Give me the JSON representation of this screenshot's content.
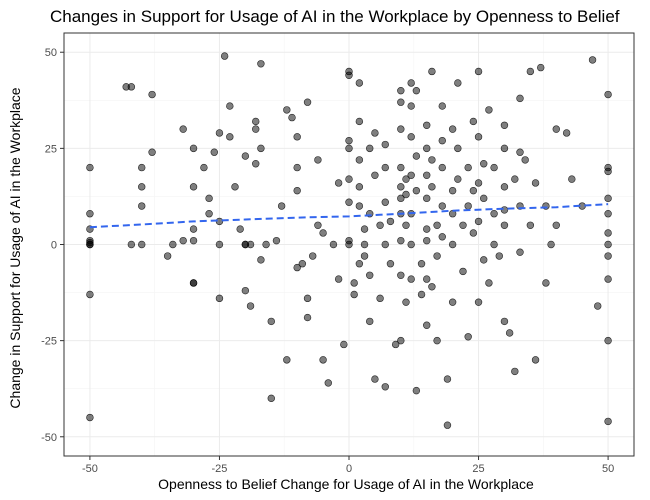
{
  "chart_data": {
    "type": "scatter",
    "title": "Changes in Support for Usage of AI in the Workplace by Openness to Belief",
    "xlabel": "Openness to Belief Change for Usage of AI in the Workplace",
    "ylabel": "Change in Support for Usage of AI in the Workplace",
    "xlim": [
      -55,
      55
    ],
    "ylim": [
      -55,
      55
    ],
    "xticks": [
      -50,
      -25,
      0,
      25,
      50
    ],
    "yticks": [
      -50,
      -25,
      0,
      25,
      50
    ],
    "grid": true,
    "point_color": "#000000",
    "point_opacity": 0.5,
    "trend_color": "#3366ee",
    "trend": {
      "type": "loess",
      "style": "dashed",
      "x": [
        -50,
        -40,
        -30,
        -20,
        -10,
        0,
        10,
        20,
        30,
        40,
        50
      ],
      "y": [
        4.5,
        5.2,
        6.0,
        6.5,
        7.0,
        7.3,
        8.0,
        8.8,
        9.3,
        9.7,
        10.5
      ]
    },
    "points": [
      [
        -50,
        20
      ],
      [
        -50,
        8
      ],
      [
        -50,
        4
      ],
      [
        -50,
        1
      ],
      [
        -50,
        0.5
      ],
      [
        -50,
        0
      ],
      [
        -50,
        0
      ],
      [
        -50,
        -13
      ],
      [
        -50,
        -45
      ],
      [
        -43,
        41
      ],
      [
        -42,
        41
      ],
      [
        -38,
        39
      ],
      [
        -40,
        20
      ],
      [
        -40,
        15
      ],
      [
        -40,
        10
      ],
      [
        -42,
        0
      ],
      [
        -40,
        0
      ],
      [
        -38,
        24
      ],
      [
        -35,
        -3
      ],
      [
        -34,
        0
      ],
      [
        -32,
        1
      ],
      [
        -32,
        30
      ],
      [
        -30,
        25
      ],
      [
        -30,
        15
      ],
      [
        -30,
        4
      ],
      [
        -30,
        1
      ],
      [
        -30,
        -10
      ],
      [
        -30,
        -10
      ],
      [
        -28,
        20
      ],
      [
        -27,
        12
      ],
      [
        -27,
        8
      ],
      [
        -26,
        24
      ],
      [
        -25,
        29
      ],
      [
        -25,
        6
      ],
      [
        -25,
        0
      ],
      [
        -25,
        -14
      ],
      [
        -24,
        49
      ],
      [
        -23,
        36
      ],
      [
        -23,
        28
      ],
      [
        -22,
        15
      ],
      [
        -21,
        4
      ],
      [
        -20,
        23
      ],
      [
        -20,
        0
      ],
      [
        -20,
        0
      ],
      [
        -20,
        -12
      ],
      [
        -19,
        0
      ],
      [
        -19,
        -16
      ],
      [
        -18,
        32
      ],
      [
        -18,
        30
      ],
      [
        -18,
        21
      ],
      [
        -17,
        47
      ],
      [
        -17,
        25
      ],
      [
        -17,
        -4
      ],
      [
        -16,
        0
      ],
      [
        -15,
        -20
      ],
      [
        -15,
        -40
      ],
      [
        -14,
        1
      ],
      [
        -13,
        10
      ],
      [
        -12,
        35
      ],
      [
        -12,
        -30
      ],
      [
        -11,
        33
      ],
      [
        -10,
        28
      ],
      [
        -10,
        20
      ],
      [
        -10,
        14
      ],
      [
        -10,
        -6
      ],
      [
        -9,
        -5
      ],
      [
        -8,
        37
      ],
      [
        -8,
        -14
      ],
      [
        -8,
        -19
      ],
      [
        -7,
        -3
      ],
      [
        -6,
        22
      ],
      [
        -6,
        5
      ],
      [
        -5,
        3
      ],
      [
        -5,
        -30
      ],
      [
        -4,
        -36
      ],
      [
        -3,
        0
      ],
      [
        -2,
        16
      ],
      [
        -2,
        -9
      ],
      [
        -1,
        -26
      ],
      [
        0,
        45
      ],
      [
        0,
        44
      ],
      [
        0,
        27
      ],
      [
        0,
        25
      ],
      [
        0,
        17
      ],
      [
        0,
        11
      ],
      [
        0,
        1
      ],
      [
        0,
        0
      ],
      [
        1,
        -10
      ],
      [
        1,
        -13
      ],
      [
        2,
        42
      ],
      [
        2,
        32
      ],
      [
        2,
        22
      ],
      [
        2,
        15
      ],
      [
        2,
        10
      ],
      [
        2,
        -5
      ],
      [
        3,
        4
      ],
      [
        3,
        0
      ],
      [
        3,
        -3
      ],
      [
        4,
        25
      ],
      [
        4,
        8
      ],
      [
        4,
        -8
      ],
      [
        4,
        -20
      ],
      [
        5,
        29
      ],
      [
        5,
        18
      ],
      [
        5,
        -35
      ],
      [
        6,
        -14
      ],
      [
        6,
        5
      ],
      [
        7,
        26
      ],
      [
        7,
        20
      ],
      [
        7,
        11
      ],
      [
        7,
        0
      ],
      [
        7,
        -37
      ],
      [
        8,
        6
      ],
      [
        8,
        -5
      ],
      [
        9,
        -26
      ],
      [
        10,
        40
      ],
      [
        10,
        37
      ],
      [
        10,
        30
      ],
      [
        10,
        20
      ],
      [
        10,
        15
      ],
      [
        10,
        12
      ],
      [
        10,
        8
      ],
      [
        10,
        1
      ],
      [
        10,
        -8
      ],
      [
        10,
        -25
      ],
      [
        11,
        17
      ],
      [
        11,
        13
      ],
      [
        11,
        5
      ],
      [
        11,
        -15
      ],
      [
        12,
        42
      ],
      [
        12,
        36
      ],
      [
        12,
        28
      ],
      [
        12,
        18
      ],
      [
        12,
        8
      ],
      [
        12,
        0
      ],
      [
        12,
        -9
      ],
      [
        13,
        40
      ],
      [
        13,
        23
      ],
      [
        13,
        14
      ],
      [
        13,
        -38
      ],
      [
        14,
        -5
      ],
      [
        14,
        -13
      ],
      [
        15,
        31
      ],
      [
        15,
        25
      ],
      [
        15,
        18
      ],
      [
        15,
        12
      ],
      [
        15,
        4
      ],
      [
        15,
        1
      ],
      [
        15,
        -9
      ],
      [
        15,
        -21
      ],
      [
        16,
        45
      ],
      [
        16,
        22
      ],
      [
        16,
        15
      ],
      [
        16,
        -11
      ],
      [
        17,
        5
      ],
      [
        17,
        -3
      ],
      [
        17,
        -25
      ],
      [
        18,
        36
      ],
      [
        18,
        27
      ],
      [
        18,
        20
      ],
      [
        18,
        10
      ],
      [
        18,
        2
      ],
      [
        19,
        -35
      ],
      [
        19,
        -47
      ],
      [
        20,
        30
      ],
      [
        20,
        14
      ],
      [
        20,
        8
      ],
      [
        20,
        0
      ],
      [
        20,
        -15
      ],
      [
        21,
        42
      ],
      [
        21,
        25
      ],
      [
        21,
        17
      ],
      [
        22,
        5
      ],
      [
        22,
        -7
      ],
      [
        23,
        20
      ],
      [
        23,
        10
      ],
      [
        23,
        -24
      ],
      [
        24,
        32
      ],
      [
        24,
        14
      ],
      [
        24,
        3
      ],
      [
        25,
        45
      ],
      [
        25,
        28
      ],
      [
        25,
        16
      ],
      [
        25,
        6
      ],
      [
        25,
        -15
      ],
      [
        26,
        21
      ],
      [
        26,
        12
      ],
      [
        26,
        -4
      ],
      [
        27,
        35
      ],
      [
        27,
        -10
      ],
      [
        28,
        20
      ],
      [
        28,
        8
      ],
      [
        28,
        0
      ],
      [
        29,
        -3
      ],
      [
        30,
        31
      ],
      [
        30,
        25
      ],
      [
        30,
        15
      ],
      [
        30,
        9
      ],
      [
        30,
        5
      ],
      [
        30,
        -20
      ],
      [
        31,
        -23
      ],
      [
        32,
        17
      ],
      [
        32,
        -33
      ],
      [
        33,
        38
      ],
      [
        33,
        24
      ],
      [
        33,
        10
      ],
      [
        33,
        -2
      ],
      [
        34,
        22
      ],
      [
        35,
        45
      ],
      [
        35,
        5
      ],
      [
        36,
        16
      ],
      [
        36,
        -30
      ],
      [
        37,
        46
      ],
      [
        38,
        10
      ],
      [
        38,
        -10
      ],
      [
        39,
        0
      ],
      [
        40,
        30
      ],
      [
        40,
        5
      ],
      [
        42,
        29
      ],
      [
        43,
        17
      ],
      [
        45,
        10
      ],
      [
        47,
        48
      ],
      [
        48,
        -16
      ],
      [
        50,
        39
      ],
      [
        50,
        20
      ],
      [
        50,
        19
      ],
      [
        50,
        12
      ],
      [
        50,
        8
      ],
      [
        50,
        3
      ],
      [
        50,
        0
      ],
      [
        50,
        -3
      ],
      [
        50,
        -9
      ],
      [
        50,
        -25
      ],
      [
        50,
        -46
      ]
    ]
  }
}
